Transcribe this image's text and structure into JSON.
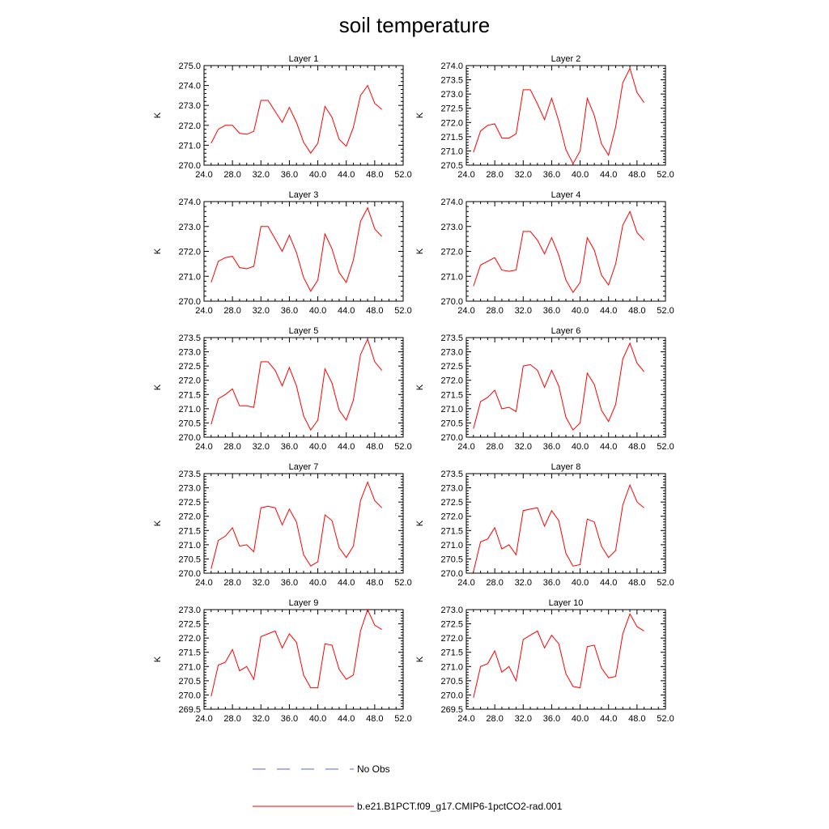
{
  "title": "soil temperature",
  "legend": {
    "entries": [
      {
        "label": "No Obs",
        "style": "dashed",
        "color": "#5566cc"
      },
      {
        "label": "b.e21.B1PCT.f09_g17.CMIP6-1pctCO2-rad.001",
        "style": "solid",
        "color": "#ff0000"
      }
    ]
  },
  "chart_data": [
    {
      "type": "line",
      "title": "Layer 1",
      "xlabel": "",
      "ylabel": "K",
      "xlim": [
        24,
        52
      ],
      "ylim": [
        270,
        275
      ],
      "xticks": [
        "24.0",
        "28.0",
        "32.0",
        "36.0",
        "40.0",
        "44.0",
        "48.0",
        "52.0"
      ],
      "yticks": [
        "270.0",
        "271.0",
        "272.0",
        "273.0",
        "274.0",
        "275.0"
      ],
      "series": [
        {
          "color": "#ff0000",
          "x": [
            25,
            26,
            27,
            28,
            29,
            30,
            31,
            32,
            33,
            34,
            35,
            36,
            37,
            38,
            39,
            40,
            41,
            42,
            43,
            44,
            45,
            46,
            47,
            48,
            49
          ],
          "y": [
            271.1,
            271.8,
            272.0,
            272.0,
            271.6,
            271.55,
            271.7,
            273.25,
            273.25,
            272.7,
            272.15,
            272.9,
            272.15,
            271.15,
            270.6,
            271.1,
            272.95,
            272.4,
            271.3,
            270.95,
            271.9,
            273.5,
            274.0,
            273.1,
            272.8
          ]
        }
      ]
    },
    {
      "type": "line",
      "title": "Layer 2",
      "xlabel": "",
      "ylabel": "K",
      "xlim": [
        24,
        52
      ],
      "ylim": [
        270.5,
        274
      ],
      "xticks": [
        "24.0",
        "28.0",
        "32.0",
        "36.0",
        "40.0",
        "44.0",
        "48.0",
        "52.0"
      ],
      "yticks": [
        "270.5",
        "271.0",
        "271.5",
        "272.0",
        "272.5",
        "273.0",
        "273.5",
        "274.0"
      ],
      "series": [
        {
          "color": "#ff0000",
          "x": [
            25,
            26,
            27,
            28,
            29,
            30,
            31,
            32,
            33,
            34,
            35,
            36,
            37,
            38,
            39,
            40,
            41,
            42,
            43,
            44,
            45,
            46,
            47,
            48,
            49
          ],
          "y": [
            270.95,
            271.7,
            271.9,
            271.95,
            271.45,
            271.45,
            271.6,
            273.15,
            273.15,
            272.65,
            272.1,
            272.85,
            272.05,
            271.05,
            270.55,
            271.0,
            272.85,
            272.25,
            271.25,
            270.85,
            271.85,
            273.4,
            273.9,
            273.05,
            272.7
          ]
        }
      ]
    },
    {
      "type": "line",
      "title": "Layer 3",
      "xlabel": "",
      "ylabel": "K",
      "xlim": [
        24,
        52
      ],
      "ylim": [
        270,
        274
      ],
      "xticks": [
        "24.0",
        "28.0",
        "32.0",
        "36.0",
        "40.0",
        "44.0",
        "48.0",
        "52.0"
      ],
      "yticks": [
        "270.0",
        "271.0",
        "272.0",
        "273.0",
        "274.0"
      ],
      "series": [
        {
          "color": "#ff0000",
          "x": [
            25,
            26,
            27,
            28,
            29,
            30,
            31,
            32,
            33,
            34,
            35,
            36,
            37,
            38,
            39,
            40,
            41,
            42,
            43,
            44,
            45,
            46,
            47,
            48,
            49
          ],
          "y": [
            270.75,
            271.6,
            271.75,
            271.8,
            271.35,
            271.3,
            271.4,
            273.0,
            273.0,
            272.5,
            272.0,
            272.65,
            271.95,
            270.95,
            270.4,
            270.85,
            272.7,
            272.1,
            271.15,
            270.75,
            271.65,
            273.2,
            273.75,
            272.9,
            272.6
          ]
        }
      ]
    },
    {
      "type": "line",
      "title": "Layer 4",
      "xlabel": "",
      "ylabel": "K",
      "xlim": [
        24,
        52
      ],
      "ylim": [
        270,
        274
      ],
      "xticks": [
        "24.0",
        "28.0",
        "32.0",
        "36.0",
        "40.0",
        "44.0",
        "48.0",
        "52.0"
      ],
      "yticks": [
        "270.0",
        "271.0",
        "272.0",
        "273.0",
        "274.0"
      ],
      "series": [
        {
          "color": "#ff0000",
          "x": [
            25,
            26,
            27,
            28,
            29,
            30,
            31,
            32,
            33,
            34,
            35,
            36,
            37,
            38,
            39,
            40,
            41,
            42,
            43,
            44,
            45,
            46,
            47,
            48,
            49
          ],
          "y": [
            270.6,
            271.45,
            271.6,
            271.75,
            271.25,
            271.2,
            271.25,
            272.8,
            272.8,
            272.45,
            271.9,
            272.55,
            271.85,
            270.85,
            270.35,
            270.75,
            272.55,
            272.05,
            271.05,
            270.65,
            271.5,
            273.05,
            273.6,
            272.75,
            272.45
          ]
        }
      ]
    },
    {
      "type": "line",
      "title": "Layer 5",
      "xlabel": "",
      "ylabel": "K",
      "xlim": [
        24,
        52
      ],
      "ylim": [
        270,
        273.5
      ],
      "xticks": [
        "24.0",
        "28.0",
        "32.0",
        "36.0",
        "40.0",
        "44.0",
        "48.0",
        "52.0"
      ],
      "yticks": [
        "270.0",
        "270.5",
        "271.0",
        "271.5",
        "272.0",
        "272.5",
        "273.0",
        "273.5"
      ],
      "series": [
        {
          "color": "#ff0000",
          "x": [
            25,
            26,
            27,
            28,
            29,
            30,
            31,
            32,
            33,
            34,
            35,
            36,
            37,
            38,
            39,
            40,
            41,
            42,
            43,
            44,
            45,
            46,
            47,
            48,
            49
          ],
          "y": [
            270.45,
            271.35,
            271.5,
            271.7,
            271.1,
            271.1,
            271.05,
            272.65,
            272.65,
            272.35,
            271.8,
            272.45,
            271.8,
            270.75,
            270.25,
            270.6,
            272.4,
            271.9,
            270.95,
            270.6,
            271.3,
            272.9,
            273.45,
            272.65,
            272.35
          ]
        }
      ]
    },
    {
      "type": "line",
      "title": "Layer 6",
      "xlabel": "",
      "ylabel": "K",
      "xlim": [
        24,
        52
      ],
      "ylim": [
        270,
        273.5
      ],
      "xticks": [
        "24.0",
        "28.0",
        "32.0",
        "36.0",
        "40.0",
        "44.0",
        "48.0",
        "52.0"
      ],
      "yticks": [
        "270.0",
        "270.5",
        "271.0",
        "271.5",
        "272.0",
        "272.5",
        "273.0",
        "273.5"
      ],
      "series": [
        {
          "color": "#ff0000",
          "x": [
            25,
            26,
            27,
            28,
            29,
            30,
            31,
            32,
            33,
            34,
            35,
            36,
            37,
            38,
            39,
            40,
            41,
            42,
            43,
            44,
            45,
            46,
            47,
            48,
            49
          ],
          "y": [
            270.3,
            271.25,
            271.4,
            271.65,
            271.0,
            271.05,
            270.9,
            272.5,
            272.55,
            272.35,
            271.75,
            272.35,
            271.8,
            270.7,
            270.25,
            270.5,
            272.25,
            271.85,
            270.95,
            270.55,
            271.15,
            272.75,
            273.3,
            272.6,
            272.3
          ]
        }
      ]
    },
    {
      "type": "line",
      "title": "Layer 7",
      "xlabel": "",
      "ylabel": "K",
      "xlim": [
        24,
        52
      ],
      "ylim": [
        270,
        273.5
      ],
      "xticks": [
        "24.0",
        "28.0",
        "32.0",
        "36.0",
        "40.0",
        "44.0",
        "48.0",
        "52.0"
      ],
      "yticks": [
        "270.0",
        "270.5",
        "271.0",
        "271.5",
        "272.0",
        "272.5",
        "273.0",
        "273.5"
      ],
      "series": [
        {
          "color": "#ff0000",
          "x": [
            25,
            26,
            27,
            28,
            29,
            30,
            31,
            32,
            33,
            34,
            35,
            36,
            37,
            38,
            39,
            40,
            41,
            42,
            43,
            44,
            45,
            46,
            47,
            48,
            49
          ],
          "y": [
            270.15,
            271.15,
            271.3,
            271.6,
            270.95,
            271.0,
            270.75,
            272.3,
            272.35,
            272.3,
            271.7,
            272.25,
            271.8,
            270.65,
            270.25,
            270.4,
            272.05,
            271.85,
            270.9,
            270.55,
            270.95,
            272.55,
            273.2,
            272.55,
            272.3
          ]
        }
      ]
    },
    {
      "type": "line",
      "title": "Layer 8",
      "xlabel": "",
      "ylabel": "K",
      "xlim": [
        24,
        52
      ],
      "ylim": [
        270,
        273.5
      ],
      "xticks": [
        "24.0",
        "28.0",
        "32.0",
        "36.0",
        "40.0",
        "44.0",
        "48.0",
        "52.0"
      ],
      "yticks": [
        "270.0",
        "270.5",
        "271.0",
        "271.5",
        "272.0",
        "272.5",
        "273.0",
        "273.5"
      ],
      "series": [
        {
          "color": "#ff0000",
          "x": [
            25,
            26,
            27,
            28,
            29,
            30,
            31,
            32,
            33,
            34,
            35,
            36,
            37,
            38,
            39,
            40,
            41,
            42,
            43,
            44,
            45,
            46,
            47,
            48,
            49
          ],
          "y": [
            270.05,
            271.1,
            271.2,
            271.6,
            270.85,
            271.0,
            270.65,
            272.2,
            272.25,
            272.3,
            271.65,
            272.2,
            271.85,
            270.7,
            270.25,
            270.3,
            271.9,
            271.8,
            270.95,
            270.55,
            270.8,
            272.4,
            273.1,
            272.5,
            272.3
          ]
        }
      ]
    },
    {
      "type": "line",
      "title": "Layer 9",
      "xlabel": "",
      "ylabel": "K",
      "xlim": [
        24,
        52
      ],
      "ylim": [
        269.5,
        273
      ],
      "xticks": [
        "24.0",
        "28.0",
        "32.0",
        "36.0",
        "40.0",
        "44.0",
        "48.0",
        "52.0"
      ],
      "yticks": [
        "269.5",
        "270.0",
        "270.5",
        "271.0",
        "271.5",
        "272.0",
        "272.5",
        "273.0"
      ],
      "series": [
        {
          "color": "#ff0000",
          "x": [
            25,
            26,
            27,
            28,
            29,
            30,
            31,
            32,
            33,
            34,
            35,
            36,
            37,
            38,
            39,
            40,
            41,
            42,
            43,
            44,
            45,
            46,
            47,
            48,
            49
          ],
          "y": [
            269.95,
            271.05,
            271.15,
            271.6,
            270.85,
            271.0,
            270.55,
            272.05,
            272.15,
            272.25,
            271.65,
            272.15,
            271.85,
            270.7,
            270.25,
            270.25,
            271.8,
            271.75,
            270.9,
            270.55,
            270.7,
            272.25,
            273.0,
            272.45,
            272.3
          ]
        }
      ]
    },
    {
      "type": "line",
      "title": "Layer 10",
      "xlabel": "",
      "ylabel": "K",
      "xlim": [
        24,
        52
      ],
      "ylim": [
        269.5,
        273
      ],
      "xticks": [
        "24.0",
        "28.0",
        "32.0",
        "36.0",
        "40.0",
        "44.0",
        "48.0",
        "52.0"
      ],
      "yticks": [
        "269.5",
        "270.0",
        "270.5",
        "271.0",
        "271.5",
        "272.0",
        "272.5",
        "273.0"
      ],
      "series": [
        {
          "color": "#ff0000",
          "x": [
            25,
            26,
            27,
            28,
            29,
            30,
            31,
            32,
            33,
            34,
            35,
            36,
            37,
            38,
            39,
            40,
            41,
            42,
            43,
            44,
            45,
            46,
            47,
            48,
            49
          ],
          "y": [
            269.9,
            271.0,
            271.1,
            271.55,
            270.8,
            271.0,
            270.5,
            271.95,
            272.1,
            272.25,
            271.65,
            272.1,
            271.8,
            270.75,
            270.3,
            270.25,
            271.7,
            271.75,
            270.95,
            270.6,
            270.65,
            272.15,
            272.85,
            272.4,
            272.25
          ]
        }
      ]
    }
  ]
}
